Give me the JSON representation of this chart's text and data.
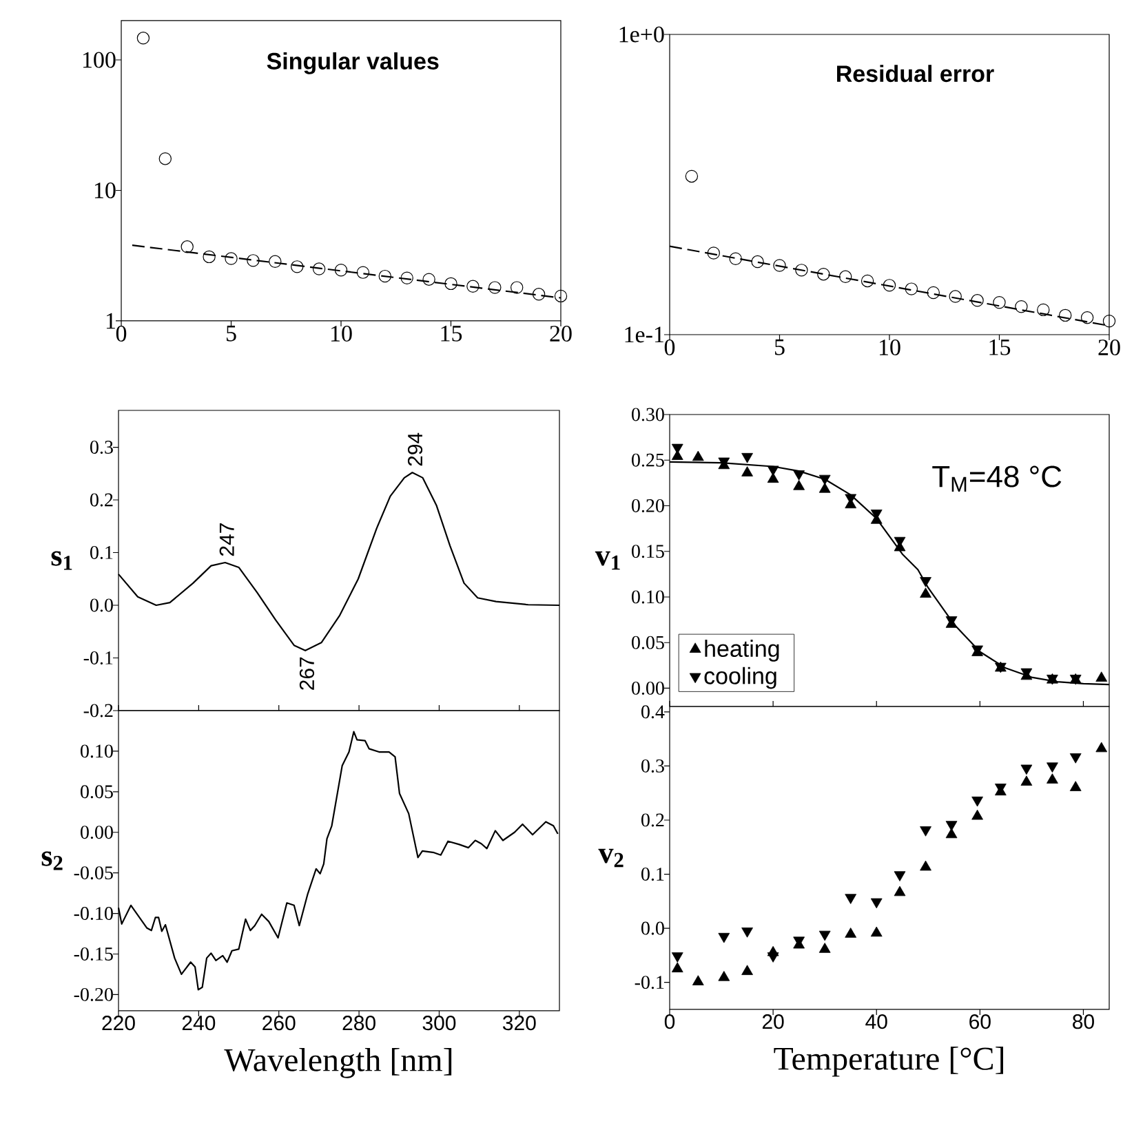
{
  "chart_data": [
    {
      "type": "scatter",
      "title": "Singular values",
      "log": "y",
      "xlim": [
        0,
        20
      ],
      "ylim": [
        1,
        200
      ],
      "xticks": [
        0,
        5,
        10,
        15,
        20
      ],
      "yticks": [
        1,
        10,
        100
      ],
      "series": [
        {
          "marker": "circle",
          "color": "#000000",
          "x": [
            1,
            2,
            3,
            4,
            5,
            6,
            7,
            8,
            9,
            10,
            11,
            12,
            13,
            14,
            15,
            16,
            17,
            18,
            19,
            20
          ],
          "values": [
            147,
            17.5,
            3.7,
            3.1,
            3.0,
            2.9,
            2.85,
            2.6,
            2.5,
            2.45,
            2.35,
            2.2,
            2.13,
            2.08,
            1.93,
            1.84,
            1.8,
            1.8,
            1.6,
            1.55
          ]
        },
        {
          "type": "line",
          "line_style": "dashed",
          "color": "#000000",
          "x": [
            0.5,
            20
          ],
          "values": [
            3.8,
            1.5
          ]
        }
      ]
    },
    {
      "type": "scatter",
      "title": "Residual error",
      "log": "y",
      "xlim": [
        0,
        20
      ],
      "ylim": [
        0.1,
        1
      ],
      "xticks": [
        0,
        5,
        10,
        15,
        20
      ],
      "yticks": [
        {
          "value": 0.1,
          "label": "1e-1"
        },
        {
          "value": 1,
          "label": "1e+0"
        }
      ],
      "series": [
        {
          "marker": "circle",
          "color": "#000000",
          "x": [
            1,
            2,
            3,
            4,
            5,
            6,
            7,
            8,
            9,
            10,
            11,
            12,
            13,
            14,
            15,
            16,
            17,
            18,
            19,
            20
          ],
          "values": [
            0.337,
            0.187,
            0.179,
            0.175,
            0.17,
            0.164,
            0.159,
            0.156,
            0.151,
            0.146,
            0.142,
            0.138,
            0.134,
            0.13,
            0.128,
            0.124,
            0.121,
            0.116,
            0.114,
            0.111
          ]
        },
        {
          "type": "line",
          "line_style": "dashed",
          "color": "#000000",
          "x": [
            0,
            20
          ],
          "values": [
            0.197,
            0.107
          ]
        }
      ]
    },
    {
      "type": "line",
      "ylabel": "s$_{1}$",
      "tick_labels": "y",
      "xlim": [
        220,
        330
      ],
      "ylim": [
        -0.2,
        0.37
      ],
      "xticks": [
        220,
        240,
        260,
        280,
        300,
        320
      ],
      "yticks": [
        {
          "value": -0.2,
          "label": "-0.2"
        },
        {
          "value": -0.1,
          "label": "-0.1"
        },
        {
          "value": 0,
          "label": "0.0"
        },
        {
          "value": 0.1,
          "label": "0.1"
        },
        {
          "value": 0.2,
          "label": "0.2"
        },
        {
          "value": 0.3,
          "label": "0.3"
        }
      ],
      "annotations": [
        {
          "text": "247",
          "x": 247,
          "y": 0.081
        },
        {
          "text": "267",
          "x": 267,
          "y": -0.086
        },
        {
          "text": "294",
          "x": 294,
          "y": 0.252
        }
      ],
      "series": [
        {
          "color": "#000000",
          "x": [
            220,
            224.8,
            229.4,
            232.8,
            238.6,
            243.1,
            246.6,
            250,
            254.6,
            259.2,
            263.8,
            266.6,
            270.6,
            275.2,
            279.8,
            284.4,
            287.8,
            291.3,
            293.3,
            295.9,
            299.3,
            302.7,
            306.2,
            309.6,
            314.2,
            322.2,
            330
          ],
          "values": [
            0.059,
            0.016,
            0.0,
            0.005,
            0.042,
            0.075,
            0.081,
            0.072,
            0.024,
            -0.028,
            -0.076,
            -0.086,
            -0.071,
            -0.019,
            0.05,
            0.146,
            0.207,
            0.242,
            0.252,
            0.242,
            0.19,
            0.113,
            0.042,
            0.014,
            0.007,
            0.001,
            0.0
          ]
        }
      ]
    },
    {
      "type": "line",
      "ylabel": "s$_{2}$",
      "xlabel": "Wavelength [nm]",
      "xlim": [
        220,
        330
      ],
      "ylim": [
        -0.22,
        0.15
      ],
      "xticks": [
        220,
        240,
        260,
        280,
        300,
        320
      ],
      "yticks": [
        {
          "value": -0.2,
          "label": "-0.20"
        },
        {
          "value": -0.15,
          "label": "-0.15"
        },
        {
          "value": -0.1,
          "label": "-0.10"
        },
        {
          "value": -0.05,
          "label": "-0.05"
        },
        {
          "value": 0,
          "label": "0.00"
        },
        {
          "value": 0.05,
          "label": "0.05"
        },
        {
          "value": 0.1,
          "label": "0.10"
        }
      ],
      "series": [
        {
          "color": "#000000",
          "x": [
            220,
            220.8,
            223.1,
            227.1,
            228.2,
            229.2,
            230,
            230.8,
            231.7,
            234,
            235.7,
            238,
            239.1,
            239.9,
            240.9,
            242,
            243.1,
            244.3,
            246,
            247.1,
            248.3,
            250,
            251.7,
            252.9,
            254,
            255.7,
            257.5,
            259.8,
            262,
            263.8,
            265.1,
            267.2,
            269.3,
            270.3,
            271.2,
            272,
            273.2,
            275.8,
            277.5,
            278.7,
            279.5,
            281.5,
            282.5,
            285,
            287.5,
            289,
            290.1,
            292.4,
            294.7,
            295.8,
            298.7,
            300.4,
            302.2,
            305,
            307.3,
            309,
            310.5,
            311.9,
            314,
            315.9,
            318.8,
            320.8,
            323.3,
            326.6,
            328.5,
            329.6
          ],
          "values": [
            -0.093,
            -0.113,
            -0.09,
            -0.118,
            -0.121,
            -0.105,
            -0.105,
            -0.122,
            -0.114,
            -0.155,
            -0.175,
            -0.16,
            -0.166,
            -0.194,
            -0.191,
            -0.155,
            -0.149,
            -0.158,
            -0.152,
            -0.16,
            -0.146,
            -0.144,
            -0.107,
            -0.121,
            -0.115,
            -0.101,
            -0.11,
            -0.13,
            -0.087,
            -0.09,
            -0.115,
            -0.076,
            -0.045,
            -0.051,
            -0.039,
            -0.008,
            0.008,
            0.082,
            0.099,
            0.124,
            0.114,
            0.113,
            0.103,
            0.099,
            0.099,
            0.093,
            0.048,
            0.023,
            -0.031,
            -0.023,
            -0.025,
            -0.028,
            -0.011,
            -0.015,
            -0.019,
            -0.01,
            -0.014,
            -0.02,
            0.002,
            -0.01,
            0.0,
            0.01,
            -0.003,
            0.013,
            0.008,
            -0.002
          ]
        }
      ]
    },
    {
      "type": "scatter",
      "ylabel": "v$_{1}$",
      "tick_labels": "y",
      "legend": "bottom left",
      "xlim": [
        0,
        85
      ],
      "ylim": [
        -0.02,
        0.3
      ],
      "xticks": [
        0,
        20,
        40,
        60,
        80
      ],
      "yticks": [
        {
          "value": 0,
          "label": "0.00"
        },
        {
          "value": 0.05,
          "label": "0.05"
        },
        {
          "value": 0.1,
          "label": "0.10"
        },
        {
          "value": 0.15,
          "label": "0.15"
        },
        {
          "value": 0.2,
          "label": "0.20"
        },
        {
          "value": 0.25,
          "label": "0.25"
        },
        {
          "value": 0.3,
          "label": "0.30"
        }
      ],
      "annotations": [
        "T$_{M}$=48 °C"
      ],
      "series": [
        {
          "type": "line",
          "color": "#000000",
          "x": [
            0,
            10,
            20,
            25,
            30,
            35,
            40,
            45,
            48,
            50,
            55,
            60,
            65,
            70,
            75,
            80,
            85
          ],
          "values": [
            0.248,
            0.247,
            0.243,
            0.238,
            0.229,
            0.212,
            0.186,
            0.147,
            0.13,
            0.11,
            0.07,
            0.04,
            0.022,
            0.012,
            0.007,
            0.005,
            0.004
          ]
        },
        {
          "name": "heating",
          "marker": "triangle",
          "color": "#000000",
          "x": [
            1.5,
            5.5,
            10.5,
            15,
            20,
            25,
            30,
            35,
            40,
            44.5,
            49.5,
            54.5,
            59.5,
            64,
            69,
            74,
            78.5,
            83.5
          ],
          "values": [
            0.254,
            0.253,
            0.244,
            0.236,
            0.229,
            0.221,
            0.218,
            0.201,
            0.184,
            0.154,
            0.103,
            0.07,
            0.039,
            0.022,
            0.013,
            0.009,
            0.009,
            0.011
          ]
        },
        {
          "name": "cooling",
          "marker": "triangle-down",
          "color": "#000000",
          "x": [
            1.5,
            5.5,
            10.5,
            15,
            20,
            25,
            30,
            35,
            40,
            44.5,
            49.5,
            54.5,
            59.5,
            64,
            69,
            74,
            78.5
          ],
          "values": [
            0.264,
            null,
            0.249,
            0.254,
            0.24,
            0.235,
            0.23,
            0.209,
            0.192,
            0.162,
            0.118,
            0.075,
            0.043,
            0.024,
            0.018,
            0.011,
            0.011
          ]
        }
      ]
    },
    {
      "type": "scatter",
      "ylabel": "v$_{2}$",
      "xlabel": "Temperature [°C]",
      "xlim": [
        0,
        85
      ],
      "ylim": [
        -0.15,
        0.41
      ],
      "xticks": [
        0,
        20,
        40,
        60,
        80
      ],
      "yticks": [
        {
          "value": -0.1,
          "label": "-0.1"
        },
        {
          "value": 0,
          "label": "0.0"
        },
        {
          "value": 0.1,
          "label": "0.1"
        },
        {
          "value": 0.2,
          "label": "0.2"
        },
        {
          "value": 0.3,
          "label": "0.3"
        },
        {
          "value": 0.4,
          "label": "0.4"
        }
      ],
      "series": [
        {
          "marker": "triangle",
          "color": "#000000",
          "x": [
            1.5,
            5.5,
            10.5,
            15,
            20,
            25,
            30,
            35,
            40,
            44.5,
            49.5,
            54.5,
            59.5,
            64,
            69,
            74,
            78.5,
            83.5
          ],
          "values": [
            -0.075,
            -0.099,
            -0.091,
            -0.08,
            -0.045,
            -0.031,
            -0.039,
            -0.011,
            -0.009,
            0.066,
            0.113,
            0.173,
            0.207,
            0.252,
            0.27,
            0.274,
            0.26,
            0.332
          ]
        },
        {
          "marker": "triangle-down",
          "color": "#000000",
          "x": [
            1.5,
            5.5,
            10.5,
            15,
            20,
            25,
            30,
            35,
            40,
            44.5,
            49.5,
            54.5,
            59.5,
            64,
            69,
            74,
            78.5
          ],
          "values": [
            -0.051,
            null,
            -0.015,
            -0.005,
            -0.051,
            -0.022,
            -0.011,
            0.057,
            0.049,
            0.099,
            0.182,
            0.192,
            0.237,
            0.261,
            0.296,
            0.3,
            0.317
          ]
        }
      ]
    }
  ]
}
